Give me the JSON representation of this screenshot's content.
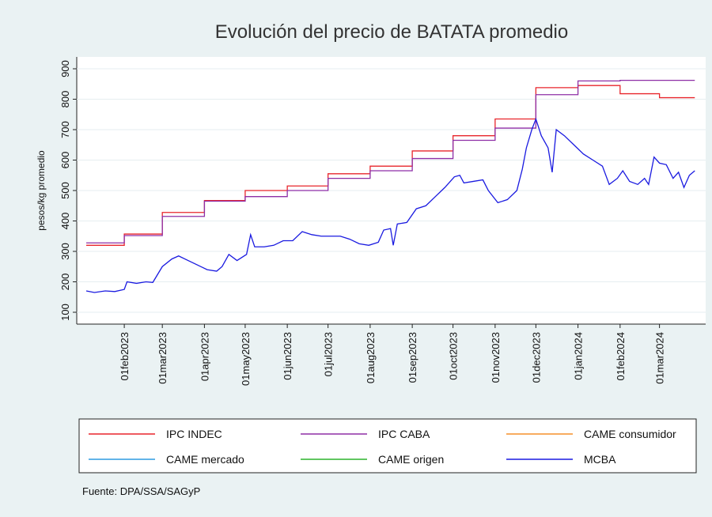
{
  "chart_data": {
    "type": "line",
    "title": "Evolución del precio de BATATA promedio",
    "y_label": "pesos/kg promedio",
    "source": "Fuente: DPA/SSA/SAGyP",
    "xlim": [
      "2022-12-28",
      "2024-04-04"
    ],
    "ylim": [
      61,
      939
    ],
    "yticks": [
      100,
      200,
      300,
      400,
      500,
      600,
      700,
      800,
      900
    ],
    "xticks": [
      {
        "value": "2023-02-01",
        "label": "01feb2023"
      },
      {
        "value": "2023-03-01",
        "label": "01mar2023"
      },
      {
        "value": "2023-04-01",
        "label": "01apr2023"
      },
      {
        "value": "2023-05-01",
        "label": "01may2023"
      },
      {
        "value": "2023-06-01",
        "label": "01jun2023"
      },
      {
        "value": "2023-07-01",
        "label": "01jul2023"
      },
      {
        "value": "2023-08-01",
        "label": "01aug2023"
      },
      {
        "value": "2023-09-01",
        "label": "01sep2023"
      },
      {
        "value": "2023-10-01",
        "label": "01oct2023"
      },
      {
        "value": "2023-11-01",
        "label": "01nov2023"
      },
      {
        "value": "2023-12-01",
        "label": "01dec2023"
      },
      {
        "value": "2024-01-01",
        "label": "01jan2024"
      },
      {
        "value": "2024-02-01",
        "label": "01feb2024"
      },
      {
        "value": "2024-03-01",
        "label": "01mar2024"
      }
    ],
    "grid": true,
    "series": [
      {
        "name": "IPC INDEC",
        "color": "#e8252b",
        "step": true,
        "x": [
          "2023-01-04",
          "2023-02-01",
          "2023-03-01",
          "2023-04-01",
          "2023-05-01",
          "2023-06-01",
          "2023-07-01",
          "2023-08-01",
          "2023-09-01",
          "2023-10-01",
          "2023-11-01",
          "2023-12-01",
          "2024-01-01",
          "2024-02-01",
          "2024-03-01",
          "2024-03-27"
        ],
        "values": [
          320,
          357,
          428,
          467,
          500,
          515,
          555,
          580,
          630,
          680,
          735,
          838,
          845,
          818,
          805,
          805
        ]
      },
      {
        "name": "IPC CABA",
        "color": "#8e2fa6",
        "step": true,
        "x": [
          "2023-01-04",
          "2023-02-01",
          "2023-03-01",
          "2023-04-01",
          "2023-05-01",
          "2023-06-01",
          "2023-07-01",
          "2023-08-01",
          "2023-09-01",
          "2023-10-01",
          "2023-11-01",
          "2023-12-01",
          "2024-01-01",
          "2024-02-01",
          "2024-03-01",
          "2024-03-27"
        ],
        "values": [
          328,
          352,
          415,
          465,
          480,
          500,
          540,
          565,
          605,
          665,
          705,
          815,
          860,
          862,
          862,
          862
        ]
      },
      {
        "name": "CAME consumidor",
        "color": "#f5912a",
        "x": [],
        "values": []
      },
      {
        "name": "CAME mercado",
        "color": "#2f9be0",
        "x": [],
        "values": []
      },
      {
        "name": "CAME origen",
        "color": "#2bb32b",
        "x": [],
        "values": []
      },
      {
        "name": "MCBA",
        "color": "#1a1ae0",
        "x": [
          "2023-01-04",
          "2023-01-10",
          "2023-01-18",
          "2023-01-25",
          "2023-02-01",
          "2023-02-03",
          "2023-02-10",
          "2023-02-17",
          "2023-02-22",
          "2023-03-01",
          "2023-03-08",
          "2023-03-13",
          "2023-03-20",
          "2023-03-27",
          "2023-04-03",
          "2023-04-10",
          "2023-04-14",
          "2023-04-19",
          "2023-04-25",
          "2023-05-02",
          "2023-05-05",
          "2023-05-08",
          "2023-05-15",
          "2023-05-22",
          "2023-05-29",
          "2023-06-05",
          "2023-06-12",
          "2023-06-19",
          "2023-06-26",
          "2023-07-03",
          "2023-07-10",
          "2023-07-17",
          "2023-07-24",
          "2023-07-31",
          "2023-08-07",
          "2023-08-11",
          "2023-08-16",
          "2023-08-18",
          "2023-08-21",
          "2023-08-28",
          "2023-09-04",
          "2023-09-11",
          "2023-09-18",
          "2023-09-25",
          "2023-10-02",
          "2023-10-06",
          "2023-10-09",
          "2023-10-16",
          "2023-10-23",
          "2023-10-27",
          "2023-11-03",
          "2023-11-10",
          "2023-11-17",
          "2023-11-21",
          "2023-11-24",
          "2023-11-28",
          "2023-12-01",
          "2023-12-05",
          "2023-12-10",
          "2023-12-13",
          "2023-12-16",
          "2023-12-22",
          "2023-12-29",
          "2024-01-05",
          "2024-01-12",
          "2024-01-19",
          "2024-01-24",
          "2024-01-30",
          "2024-02-03",
          "2024-02-08",
          "2024-02-14",
          "2024-02-19",
          "2024-02-22",
          "2024-02-26",
          "2024-03-01",
          "2024-03-06",
          "2024-03-11",
          "2024-03-15",
          "2024-03-19",
          "2024-03-23",
          "2024-03-27"
        ],
        "values": [
          170,
          165,
          170,
          168,
          175,
          200,
          195,
          200,
          198,
          250,
          275,
          285,
          270,
          255,
          240,
          235,
          250,
          290,
          270,
          290,
          355,
          315,
          315,
          320,
          335,
          335,
          365,
          355,
          350,
          350,
          350,
          340,
          325,
          320,
          330,
          370,
          375,
          320,
          390,
          395,
          440,
          450,
          480,
          510,
          545,
          550,
          525,
          530,
          535,
          500,
          460,
          470,
          500,
          570,
          640,
          700,
          735,
          680,
          640,
          560,
          700,
          680,
          650,
          620,
          600,
          580,
          520,
          540,
          565,
          530,
          520,
          540,
          520,
          610,
          590,
          585,
          540,
          560,
          510,
          550,
          565
        ]
      }
    ]
  }
}
